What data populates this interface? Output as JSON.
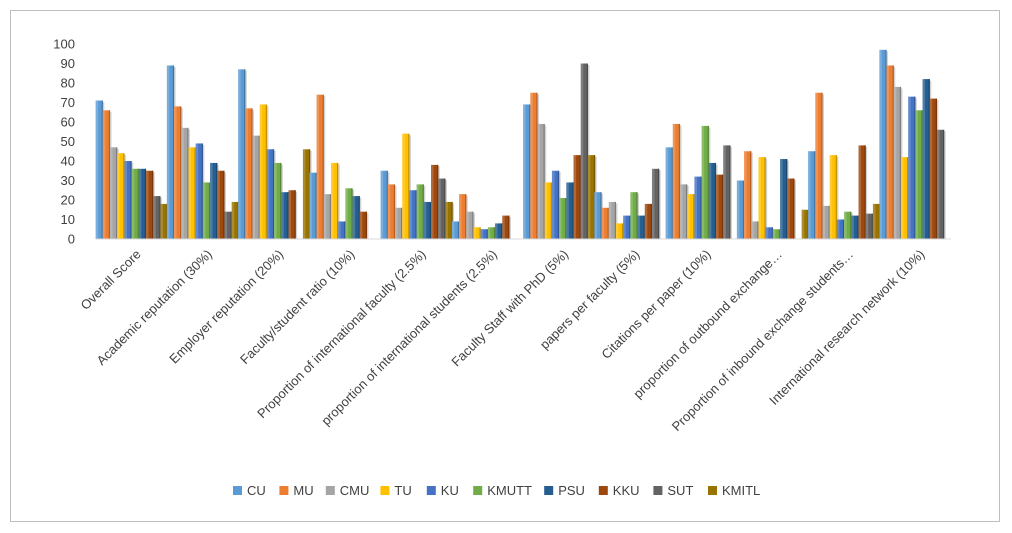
{
  "chart_data": {
    "type": "bar",
    "title": "",
    "xlabel": "",
    "ylabel": "",
    "ylim": [
      0,
      100
    ],
    "yticks": [
      0,
      10,
      20,
      30,
      40,
      50,
      60,
      70,
      80,
      90,
      100
    ],
    "grid": false,
    "legend_position": "bottom",
    "categories": [
      "Overall Score",
      "Academic reputation (30%)",
      "Employer reputation (20%)",
      "Faculty/student ratio (10%)",
      "Proportion of international faculty (2.5%)",
      "proportion of international students (2.5%)",
      "Faculty Staff with PhD (5%)",
      "papers per faculty (5%)",
      "Citations per paper (10%)",
      "proportion of outbound exchange…",
      "Proportion of inbound exchange students…",
      "International research network (10%)"
    ],
    "series": [
      {
        "name": "CU",
        "color": "#5b9bd5",
        "values": [
          71,
          89,
          87,
          34,
          35,
          9,
          69,
          24,
          47,
          30,
          45,
          97
        ]
      },
      {
        "name": "MU",
        "color": "#ed7d31",
        "values": [
          66,
          68,
          67,
          74,
          28,
          23,
          75,
          16,
          59,
          45,
          75,
          89
        ]
      },
      {
        "name": "CMU",
        "color": "#a5a5a5",
        "values": [
          47,
          57,
          53,
          23,
          16,
          14,
          59,
          19,
          28,
          9,
          17,
          78
        ]
      },
      {
        "name": "TU",
        "color": "#ffc000",
        "values": [
          44,
          47,
          69,
          39,
          54,
          6,
          29,
          8,
          23,
          42,
          43,
          42
        ]
      },
      {
        "name": "KU",
        "color": "#4472c4",
        "values": [
          40,
          49,
          46,
          9,
          25,
          5,
          35,
          12,
          32,
          6,
          10,
          73
        ]
      },
      {
        "name": "KMUTT",
        "color": "#70ad47",
        "values": [
          36,
          29,
          39,
          26,
          28,
          6,
          21,
          24,
          58,
          5,
          14,
          66
        ]
      },
      {
        "name": "PSU",
        "color": "#255e91",
        "values": [
          36,
          39,
          24,
          22,
          19,
          8,
          29,
          12,
          39,
          41,
          12,
          82
        ]
      },
      {
        "name": "KKU",
        "color": "#9e480e",
        "values": [
          35,
          35,
          25,
          14,
          38,
          12,
          43,
          18,
          33,
          31,
          48,
          72
        ]
      },
      {
        "name": "SUT",
        "color": "#636363",
        "values": [
          22,
          14,
          0,
          0,
          31,
          0,
          90,
          36,
          48,
          0,
          13,
          56
        ]
      },
      {
        "name": "KMITL",
        "color": "#997300",
        "values": [
          18,
          19,
          46,
          0,
          19,
          0,
          43,
          0,
          0,
          15,
          18,
          0
        ]
      }
    ]
  }
}
